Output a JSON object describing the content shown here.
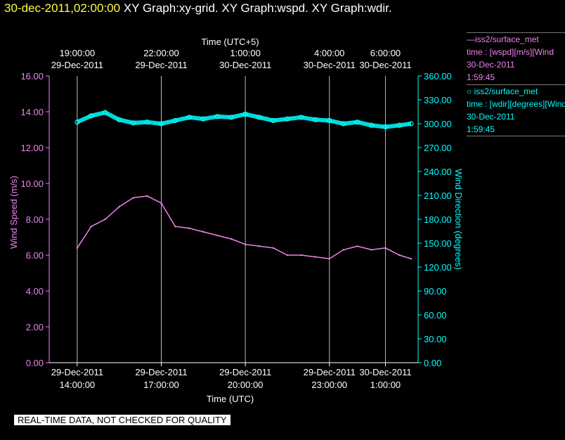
{
  "header": {
    "timestamp": "30-dec-2011,02:00:00",
    "titles": "XY Graph:xy-grid.  XY Graph:wspd.  XY Graph:wdir."
  },
  "legend": [
    {
      "marker": "—",
      "name": "iss2/surface_met",
      "line2": "time : [wspd][m/s][Wind",
      "line3": "30-Dec-2011",
      "line4": "1:59:45",
      "color": "#ee82ee"
    },
    {
      "marker": "○",
      "name": "iss2/surface_met",
      "line2": "time : [wdir][degrees][Wind",
      "line3": "30-Dec-2011",
      "line4": "1:59:45",
      "color": "#00ffff"
    }
  ],
  "warning": "REAL-TIME DATA, NOT CHECKED FOR QUALITY",
  "chart_data": {
    "type": "line",
    "top_axis": {
      "label": "Time (UTC+5)",
      "ticks": [
        {
          "x": "19:00",
          "line1": "19:00:00",
          "line2": "29-Dec-2011"
        },
        {
          "x": "22:00",
          "line1": "22:00:00",
          "line2": "29-Dec-2011"
        },
        {
          "x": "01:00",
          "line1": "1:00:00",
          "line2": "30-Dec-2011"
        },
        {
          "x": "04:00",
          "line1": "4:00:00",
          "line2": "30-Dec-2011"
        },
        {
          "x": "06:00",
          "line1": "6:00:00",
          "line2": "30-Dec-2011"
        }
      ]
    },
    "bottom_axis": {
      "label": "Time (UTC)",
      "range": [
        "29-Dec-2011 13:00",
        "30-Dec-2011 02:10"
      ],
      "ticks": [
        {
          "x": "29-Dec-2011 14:00",
          "line1": "29-Dec-2011",
          "line2": "14:00:00"
        },
        {
          "x": "29-Dec-2011 17:00",
          "line1": "29-Dec-2011",
          "line2": "17:00:00"
        },
        {
          "x": "29-Dec-2011 20:00",
          "line1": "29-Dec-2011",
          "line2": "20:00:00"
        },
        {
          "x": "29-Dec-2011 23:00",
          "line1": "29-Dec-2011",
          "line2": "23:00:00"
        },
        {
          "x": "30-Dec-2011 01:00",
          "line1": "30-Dec-2011",
          "line2": "1:00:00"
        }
      ]
    },
    "left_axis": {
      "label": "Wind  Speed  (m/s)",
      "range": [
        0,
        16
      ],
      "ticks": [
        "0.00",
        "2.00",
        "4.00",
        "6.00",
        "8.00",
        "10.00",
        "12.00",
        "14.00",
        "16.00"
      ],
      "color": "#ee82ee"
    },
    "right_axis": {
      "label": "Wind  Direction  (degrees)",
      "range": [
        0,
        360
      ],
      "ticks": [
        "0.00",
        "30.00",
        "60.00",
        "90.00",
        "120.00",
        "150.00",
        "180.00",
        "210.00",
        "240.00",
        "270.00",
        "300.00",
        "330.00",
        "360.00"
      ],
      "color": "#00ffff"
    },
    "grid": "vertical lines at bottom-axis ticks",
    "series": [
      {
        "name": "iss2/surface_met",
        "axis": "left",
        "color": "#ee82ee",
        "style": "line",
        "x": [
          "29-Dec-2011 14:00",
          "29-Dec-2011 14:30",
          "29-Dec-2011 15:00",
          "29-Dec-2011 15:30",
          "29-Dec-2011 16:00",
          "29-Dec-2011 16:30",
          "29-Dec-2011 17:00",
          "29-Dec-2011 17:30",
          "29-Dec-2011 18:00",
          "29-Dec-2011 18:30",
          "29-Dec-2011 19:00",
          "29-Dec-2011 19:30",
          "29-Dec-2011 20:00",
          "29-Dec-2011 20:30",
          "29-Dec-2011 21:00",
          "29-Dec-2011 21:30",
          "29-Dec-2011 22:00",
          "29-Dec-2011 22:30",
          "29-Dec-2011 23:00",
          "29-Dec-2011 23:30",
          "30-Dec-2011 00:00",
          "30-Dec-2011 00:30",
          "30-Dec-2011 01:00",
          "30-Dec-2011 01:30",
          "30-Dec-2011 01:55"
        ],
        "values": [
          6.4,
          7.6,
          8.0,
          8.7,
          9.2,
          9.3,
          8.9,
          7.6,
          7.5,
          7.3,
          7.1,
          6.9,
          6.6,
          6.5,
          6.4,
          6.0,
          6.0,
          5.9,
          5.8,
          6.3,
          6.5,
          6.3,
          6.4,
          6.0,
          5.8
        ]
      },
      {
        "name": "iss2/surface_met",
        "axis": "right",
        "color": "#00ffff",
        "style": "markers",
        "x": [
          "29-Dec-2011 14:00",
          "29-Dec-2011 14:30",
          "29-Dec-2011 15:00",
          "29-Dec-2011 15:30",
          "29-Dec-2011 16:00",
          "29-Dec-2011 16:30",
          "29-Dec-2011 17:00",
          "29-Dec-2011 17:30",
          "29-Dec-2011 18:00",
          "29-Dec-2011 18:30",
          "29-Dec-2011 19:00",
          "29-Dec-2011 19:30",
          "29-Dec-2011 20:00",
          "29-Dec-2011 20:30",
          "29-Dec-2011 21:00",
          "29-Dec-2011 21:30",
          "29-Dec-2011 22:00",
          "29-Dec-2011 22:30",
          "29-Dec-2011 23:00",
          "29-Dec-2011 23:30",
          "30-Dec-2011 00:00",
          "30-Dec-2011 00:30",
          "30-Dec-2011 01:00",
          "30-Dec-2011 01:30",
          "30-Dec-2011 01:55"
        ],
        "values": [
          302,
          310,
          314,
          305,
          301,
          302,
          300,
          304,
          308,
          306,
          309,
          308,
          312,
          308,
          304,
          306,
          308,
          305,
          304,
          300,
          302,
          298,
          296,
          298,
          300
        ]
      }
    ]
  }
}
